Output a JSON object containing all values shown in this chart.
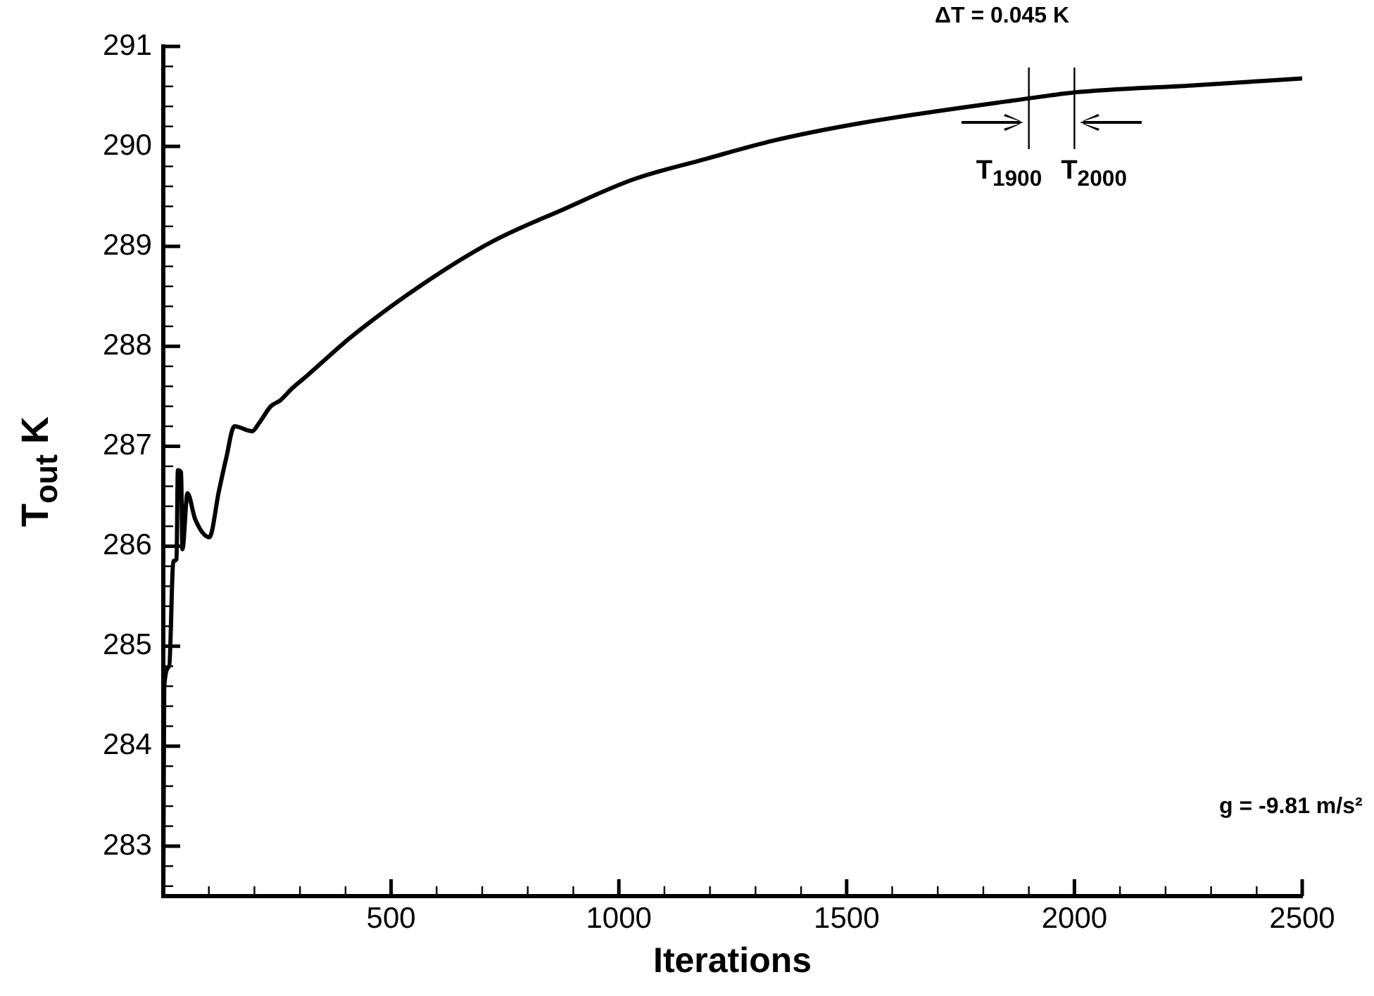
{
  "chart_data": {
    "type": "line",
    "xlabel": "Iterations",
    "ylabel": "T$_{out}$ K",
    "xlim": [
      0,
      2500
    ],
    "ylim": [
      282.5,
      291
    ],
    "xticks": [
      {
        "value": 100,
        "label": null
      },
      {
        "value": 200,
        "label": null
      },
      {
        "value": 300,
        "label": null
      },
      {
        "value": 400,
        "label": null
      },
      500,
      {
        "value": 600,
        "label": null
      },
      {
        "value": 700,
        "label": null
      },
      {
        "value": 800,
        "label": null
      },
      {
        "value": 900,
        "label": null
      },
      1000,
      {
        "value": 1100,
        "label": null
      },
      {
        "value": 1200,
        "label": null
      },
      {
        "value": 1300,
        "label": null
      },
      {
        "value": 1400,
        "label": null
      },
      1500,
      {
        "value": 1600,
        "label": null
      },
      {
        "value": 1700,
        "label": null
      },
      {
        "value": 1800,
        "label": null
      },
      {
        "value": 1900,
        "label": null
      },
      2000,
      {
        "value": 2100,
        "label": null
      },
      {
        "value": 2200,
        "label": null
      },
      {
        "value": 2300,
        "label": null
      },
      {
        "value": 2400,
        "label": null
      },
      2500
    ],
    "yticks": [
      {
        "value": 282.6,
        "label": null
      },
      {
        "value": 282.8,
        "label": null
      },
      283,
      {
        "value": 283.2,
        "label": null
      },
      {
        "value": 283.4,
        "label": null
      },
      {
        "value": 283.6,
        "label": null
      },
      {
        "value": 283.8,
        "label": null
      },
      284,
      {
        "value": 284.2,
        "label": null
      },
      {
        "value": 284.4,
        "label": null
      },
      {
        "value": 284.6,
        "label": null
      },
      {
        "value": 284.8,
        "label": null
      },
      285,
      {
        "value": 285.2,
        "label": null
      },
      {
        "value": 285.4,
        "label": null
      },
      {
        "value": 285.6,
        "label": null
      },
      {
        "value": 285.8,
        "label": null
      },
      286,
      {
        "value": 286.2,
        "label": null
      },
      {
        "value": 286.4,
        "label": null
      },
      {
        "value": 286.6,
        "label": null
      },
      {
        "value": 286.8,
        "label": null
      },
      287,
      {
        "value": 287.2,
        "label": null
      },
      {
        "value": 287.4,
        "label": null
      },
      {
        "value": 287.6,
        "label": null
      },
      {
        "value": 287.8,
        "label": null
      },
      288,
      {
        "value": 288.2,
        "label": null
      },
      {
        "value": 288.4,
        "label": null
      },
      {
        "value": 288.6,
        "label": null
      },
      {
        "value": 288.8,
        "label": null
      },
      289,
      {
        "value": 289.2,
        "label": null
      },
      {
        "value": 289.4,
        "label": null
      },
      {
        "value": 289.6,
        "label": null
      },
      {
        "value": 289.8,
        "label": null
      },
      290,
      {
        "value": 290.2,
        "label": null
      },
      {
        "value": 290.4,
        "label": null
      },
      {
        "value": 290.6,
        "label": null
      },
      {
        "value": 290.8,
        "label": null
      },
      291
    ],
    "series": [
      {
        "color": "#000000",
        "x": [
          0,
          2,
          13,
          22,
          29,
          32,
          39,
          42,
          53,
          70,
          101,
          122,
          138,
          156,
          195,
          210,
          236,
          257,
          283,
          314,
          414,
          569,
          723,
          878,
          1032,
          1187,
          1341,
          1527,
          1900,
          2000,
          2259,
          2500
        ],
        "values": [
          282.5,
          284.6,
          284.8,
          285.85,
          285.87,
          286.76,
          286.74,
          285.97,
          286.53,
          286.27,
          286.09,
          286.55,
          286.88,
          287.2,
          287.15,
          287.23,
          287.4,
          287.46,
          287.58,
          287.7,
          288.1,
          288.62,
          289.05,
          289.37,
          289.67,
          289.87,
          290.06,
          290.23,
          290.48,
          290.54,
          290.61,
          290.68
        ]
      }
    ],
    "annotations": [
      "ΔT = 0.045 K",
      "g = -9.81 m/s²"
    ],
    "ref_lines": [
      {
        "axis": "x",
        "value": 1900,
        "label": "T$_{1900}$"
      },
      {
        "axis": "x",
        "value": 2000,
        "label": "T$_{2000}$"
      }
    ],
    "marker": "none",
    "line_style": "solid"
  }
}
